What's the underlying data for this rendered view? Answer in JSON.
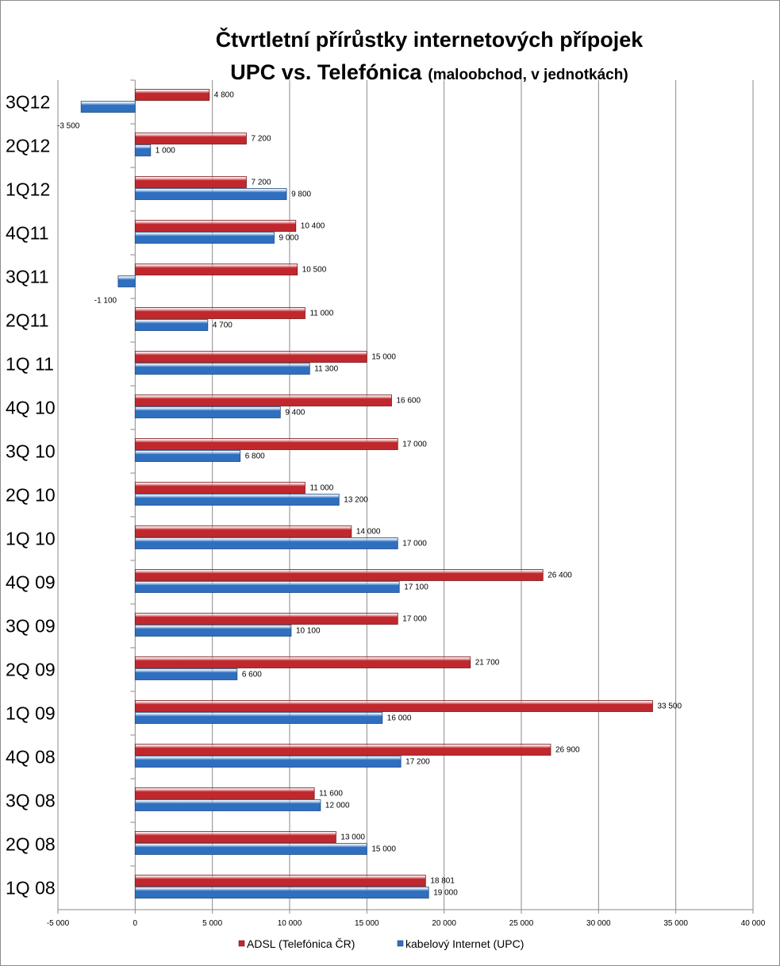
{
  "chart_data": {
    "type": "bar",
    "orientation": "horizontal",
    "title": "Čtvrtletní přírůstky  internetových přípojek",
    "subtitle_main": "UPC vs. Telefónica",
    "subtitle_small": "(maloobchod, v jednotkách)",
    "categories": [
      "3Q12",
      "2Q12",
      "1Q12",
      "4Q11",
      "3Q11",
      "2Q11",
      "1Q 11",
      "4Q 10",
      "3Q 10",
      "2Q 10",
      "1Q 10",
      "4Q 09",
      "3Q 09",
      "2Q 09",
      "1Q 09",
      "4Q 08",
      "3Q 08",
      "2Q 08",
      "1Q 08"
    ],
    "series": [
      {
        "name": "ADSL (Telefónica ČR)",
        "color": "#c0282d",
        "values": [
          4800,
          7200,
          7200,
          10400,
          10500,
          11000,
          15000,
          16600,
          17000,
          11000,
          14000,
          26400,
          17000,
          21700,
          33500,
          26900,
          11600,
          13000,
          18801
        ],
        "labels": [
          "4 800",
          "7 200",
          "7 200",
          "10 400",
          "10 500",
          "11 000",
          "15 000",
          "16 600",
          "17 000",
          "11 000",
          "14 000",
          "26 400",
          "17 000",
          "21 700",
          "33 500",
          "26 900",
          "11 600",
          "13 000",
          "18 801"
        ]
      },
      {
        "name": "kabelový Internet (UPC)",
        "color": "#2f6fc0",
        "values": [
          -3500,
          1000,
          9800,
          9000,
          -1100,
          4700,
          11300,
          9400,
          6800,
          13200,
          17000,
          17100,
          10100,
          6600,
          16000,
          17200,
          12000,
          15000,
          19000
        ],
        "labels": [
          "-3 500",
          "1 000",
          "9 800",
          "9 000",
          "-1 100",
          "4 700",
          "11 300",
          "9 400",
          "6 800",
          "13 200",
          "17 000",
          "17 100",
          "10 100",
          "6 600",
          "16 000",
          "17 200",
          "12 000",
          "15 000",
          "19 000"
        ]
      }
    ],
    "xlim": [
      -5000,
      40000
    ],
    "x_ticks": [
      -5000,
      0,
      5000,
      10000,
      15000,
      20000,
      25000,
      30000,
      35000,
      40000
    ],
    "x_tick_labels": [
      "-5 000",
      "0",
      "5 000",
      "10 000",
      "15 000",
      "20 000",
      "25 000",
      "30 000",
      "35 000",
      "40 000"
    ],
    "grid": "vertical",
    "legend_position": "bottom"
  }
}
